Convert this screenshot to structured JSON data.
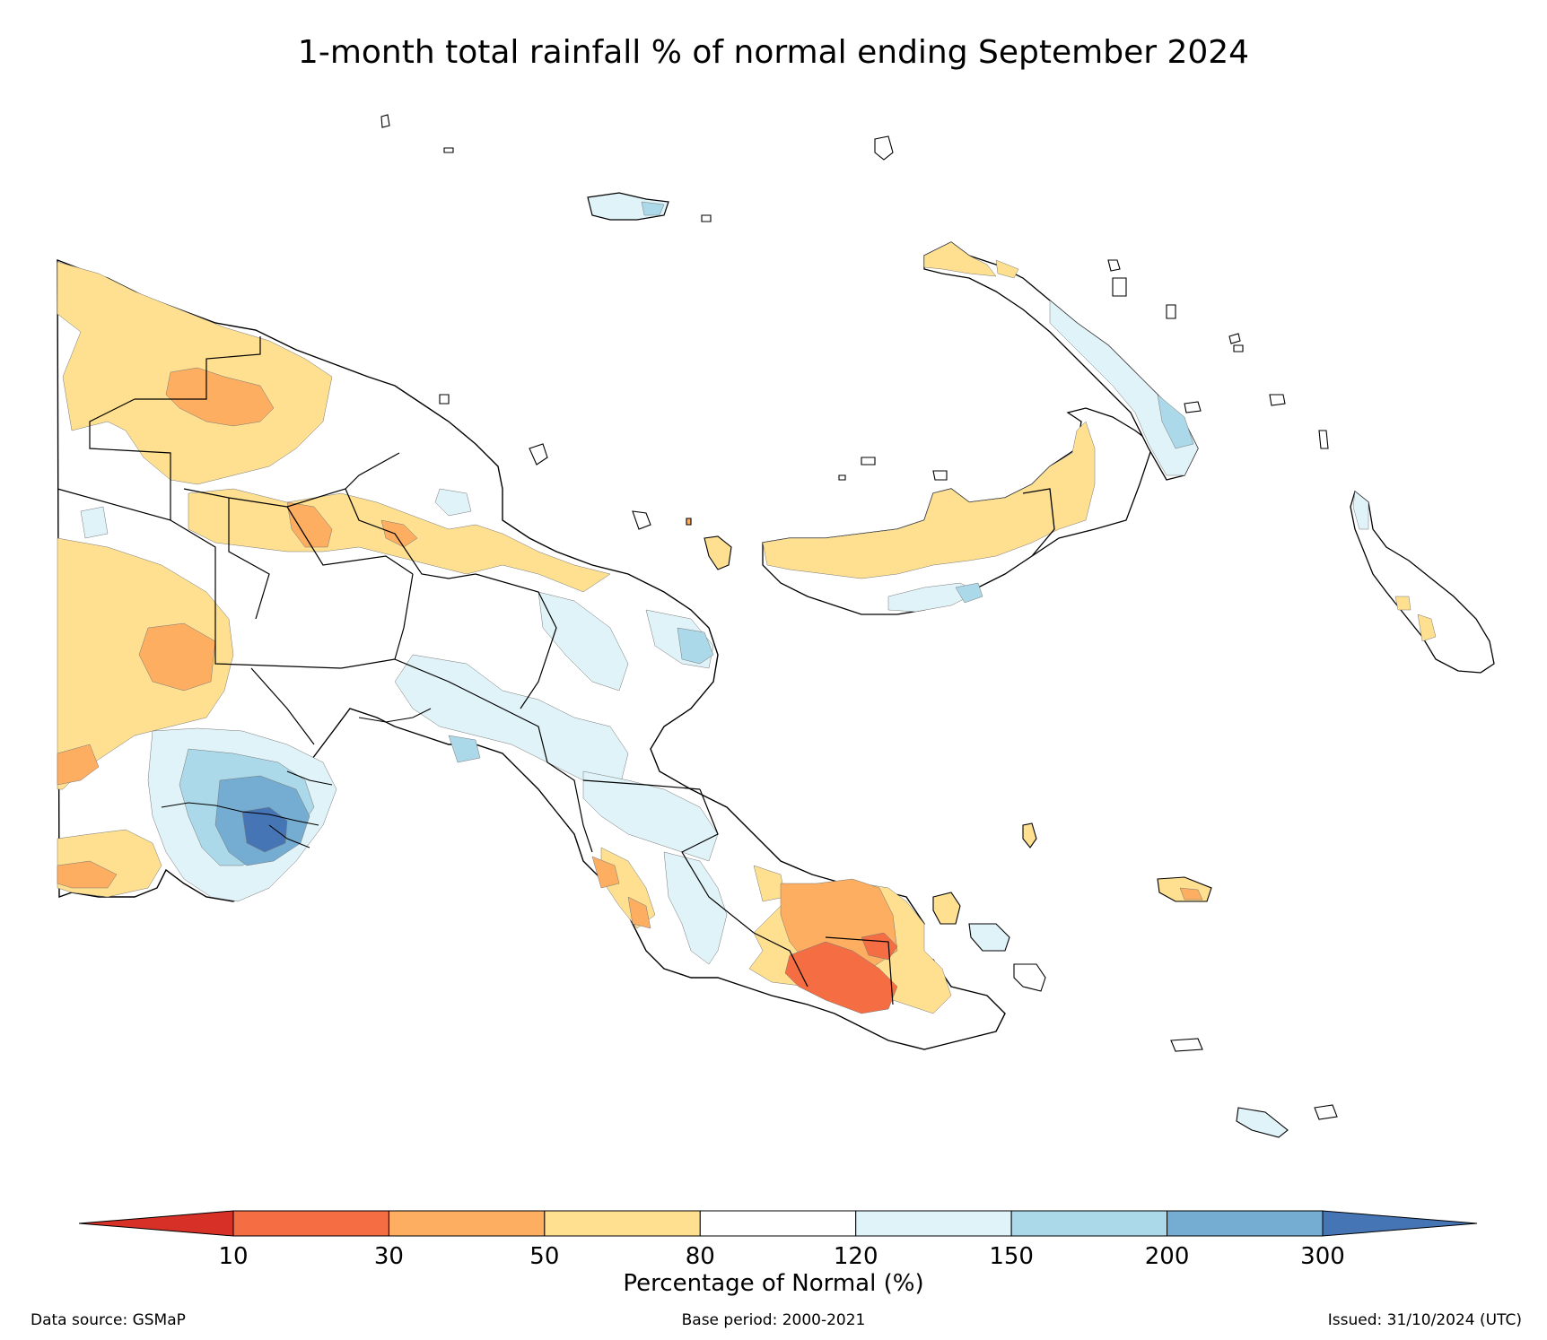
{
  "title": "1-month total rainfall % of normal ending September 2024",
  "colorbar": {
    "label": "Percentage of Normal (%)",
    "ticks": [
      "10",
      "30",
      "50",
      "80",
      "120",
      "150",
      "200",
      "300"
    ],
    "bins": [
      {
        "range": "<10",
        "color": "#d73027"
      },
      {
        "range": "10-30",
        "color": "#f46d43"
      },
      {
        "range": "30-50",
        "color": "#fdae61"
      },
      {
        "range": "50-80",
        "color": "#fee090"
      },
      {
        "range": "80-120",
        "color": "#ffffff"
      },
      {
        "range": "120-150",
        "color": "#e0f3f8"
      },
      {
        "range": "150-200",
        "color": "#abd9e9"
      },
      {
        "range": "200-300",
        "color": "#74add1"
      },
      {
        "range": ">300",
        "color": "#4575b4"
      }
    ]
  },
  "footer": {
    "data_source": "Data source: GSMaP",
    "base_period": "Base period: 2000-2021",
    "issued": "Issued: 31/10/2024 (UTC)"
  }
}
